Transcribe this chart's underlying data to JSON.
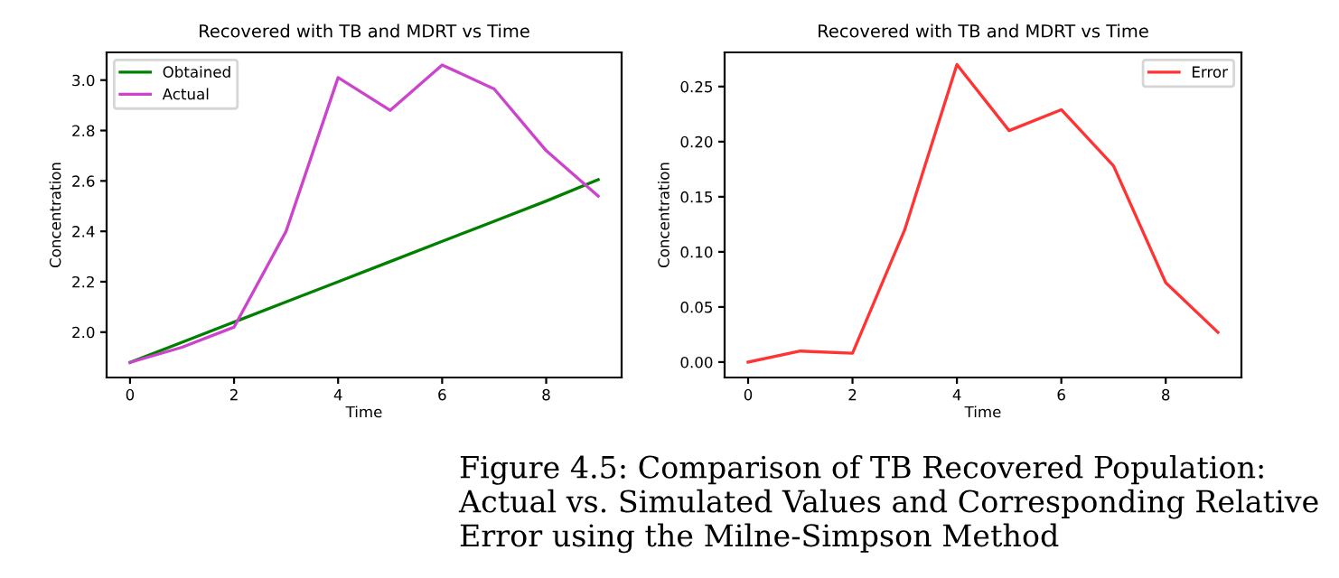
{
  "chart_data": [
    {
      "type": "line",
      "title": "Recovered with TB and MDRT vs Time",
      "xlabel": "Time",
      "ylabel": "Concentration",
      "x": [
        0,
        1,
        2,
        3,
        4,
        5,
        6,
        7,
        8,
        9
      ],
      "series": [
        {
          "name": "Obtained",
          "color": "#008000",
          "values": [
            1.88,
            1.96,
            2.04,
            2.12,
            2.2,
            2.28,
            2.36,
            2.44,
            2.52,
            2.605
          ]
        },
        {
          "name": "Actual",
          "color": "#cc44cc",
          "values": [
            1.88,
            1.94,
            2.02,
            2.4,
            3.01,
            2.88,
            3.06,
            2.965,
            2.72,
            2.54
          ]
        }
      ],
      "xlim": [
        -0.45,
        9.45
      ],
      "ylim": [
        1.82,
        3.11
      ],
      "xticks": [
        0,
        2,
        4,
        6,
        8
      ],
      "yticks": [
        {
          "value": 2.0,
          "label": "2.0"
        },
        2.2,
        2.4,
        2.6,
        2.8,
        {
          "value": 3.0,
          "label": "3.0"
        }
      ],
      "legend": "top left",
      "grid": false,
      "annotations": [
        "Figure 4.5: Comparison of TB Recovered Population: Actual vs. Simulated Values and Corresponding Relative Error using the Milne-Simpson Method"
      ]
    },
    {
      "type": "line",
      "title": "Recovered with TB and MDRT vs Time",
      "xlabel": "Time",
      "ylabel": "Concentration",
      "x": [
        0,
        1,
        2,
        3,
        4,
        5,
        6,
        7,
        8,
        9
      ],
      "series": [
        {
          "name": "Error",
          "color": "#ff3333",
          "values": [
            0.0,
            0.01,
            0.008,
            0.12,
            0.27,
            0.21,
            0.229,
            0.178,
            0.072,
            0.027
          ]
        }
      ],
      "xlim": [
        -0.45,
        9.45
      ],
      "ylim": [
        -0.014,
        0.281
      ],
      "xticks": [
        0,
        2,
        4,
        6,
        8
      ],
      "yticks": [
        {
          "value": 0.0,
          "label": "0.00"
        },
        {
          "value": 0.05,
          "label": "0.05"
        },
        {
          "value": 0.1,
          "label": "0.10"
        },
        {
          "value": 0.15,
          "label": "0.15"
        },
        {
          "value": 0.2,
          "label": "0.20"
        },
        {
          "value": 0.25,
          "label": "0.25"
        }
      ],
      "legend": "top right",
      "grid": false
    }
  ]
}
